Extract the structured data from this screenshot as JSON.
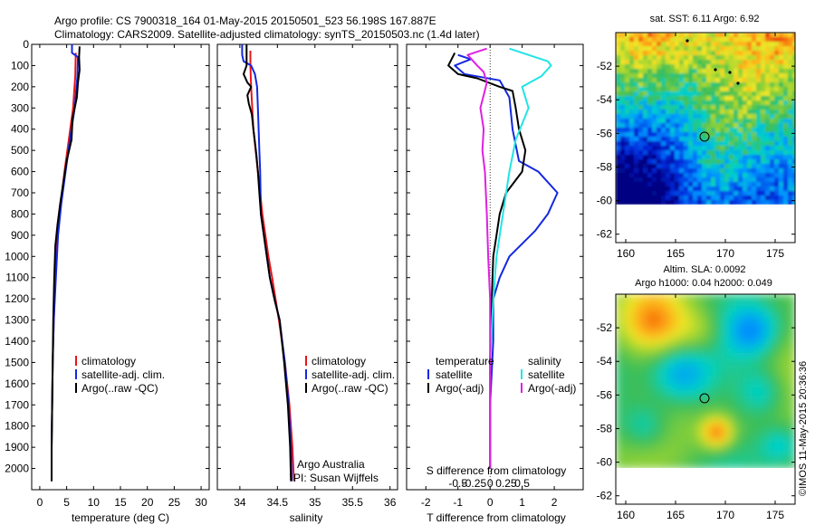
{
  "header": {
    "line1": "Argo profile: CS 7900318_164 01-May-2015 20150501_523 56.198S 167.887E",
    "line2": "Climatology: CARS2009. Satellite-adjusted climatology: synTS_20150503.nc (1.4d later)"
  },
  "colors": {
    "clim": "#e8141a",
    "sat": "#1428e0",
    "argo": "#000000",
    "sat_s": "#22e4e4",
    "argo_s": "#e020e0"
  },
  "chart_data": [
    {
      "id": "temperature",
      "type": "line",
      "xlabel": "temperature (deg C)",
      "ylabel": "",
      "xlim": [
        -1.5,
        31.5
      ],
      "ylim": [
        2100,
        0
      ],
      "x_ticks": [
        0,
        5,
        10,
        15,
        20,
        25,
        30
      ],
      "x_tick_labels": [
        "0",
        "5",
        "10",
        "15",
        "20",
        "25",
        "30"
      ],
      "y_ticks": [
        0,
        100,
        200,
        300,
        400,
        500,
        600,
        700,
        800,
        900,
        1000,
        1100,
        1200,
        1300,
        1400,
        1500,
        1600,
        1700,
        1800,
        1900,
        2000
      ],
      "y_tick_labels": [
        "0",
        "100",
        "200",
        "300",
        "400",
        "500",
        "600",
        "700",
        "800",
        "900",
        "1000",
        "1100",
        "1200",
        "1300",
        "1400",
        "1500",
        "1600",
        "1700",
        "1800",
        "1900",
        "2000"
      ],
      "legend": {
        "position": "center-right",
        "entries": [
          "climatology",
          "satellite-adj. clim.",
          "Argo(..raw -QC)"
        ]
      },
      "series": [
        {
          "name": "climatology",
          "color_key": "clim",
          "points": [
            [
              6.7,
              40
            ],
            [
              6.6,
              150
            ],
            [
              6.2,
              300
            ],
            [
              5.4,
              450
            ],
            [
              4.6,
              600
            ],
            [
              3.9,
              750
            ],
            [
              3.3,
              900
            ],
            [
              2.9,
              1100
            ],
            [
              2.6,
              1300
            ],
            [
              2.4,
              1500
            ],
            [
              2.3,
              1700
            ],
            [
              2.2,
              1900
            ],
            [
              2.2,
              2060
            ]
          ]
        },
        {
          "name": "satellite-adj. clim.",
          "color_key": "sat",
          "points": [
            [
              6.0,
              0
            ],
            [
              6.0,
              40
            ],
            [
              7.1,
              60
            ],
            [
              7.0,
              150
            ],
            [
              6.5,
              300
            ],
            [
              5.6,
              450
            ],
            [
              4.8,
              600
            ],
            [
              4.0,
              750
            ],
            [
              3.4,
              900
            ],
            [
              3.0,
              1100
            ],
            [
              2.6,
              1300
            ],
            [
              2.4,
              1500
            ],
            [
              2.3,
              1700
            ],
            [
              2.2,
              1900
            ],
            [
              2.2,
              2060
            ]
          ]
        },
        {
          "name": "Argo(..raw -QC)",
          "color_key": "argo",
          "points": [
            [
              7.4,
              10
            ],
            [
              7.3,
              60
            ],
            [
              7.4,
              120
            ],
            [
              7.1,
              180
            ],
            [
              6.9,
              250
            ],
            [
              6.1,
              350
            ],
            [
              5.9,
              450
            ],
            [
              5.0,
              550
            ],
            [
              4.4,
              650
            ],
            [
              3.8,
              750
            ],
            [
              3.3,
              850
            ],
            [
              2.9,
              950
            ],
            [
              2.7,
              1100
            ],
            [
              2.5,
              1300
            ],
            [
              2.4,
              1500
            ],
            [
              2.3,
              1700
            ],
            [
              2.2,
              1900
            ],
            [
              2.2,
              2060
            ]
          ]
        }
      ]
    },
    {
      "id": "salinity",
      "type": "line",
      "xlabel": "salinity",
      "xlim": [
        33.7,
        36.1
      ],
      "ylim": [
        2100,
        0
      ],
      "x_ticks": [
        34,
        34.5,
        35,
        35.5,
        36
      ],
      "x_tick_labels": [
        "34",
        "34.5",
        "35",
        "35.5",
        "36"
      ],
      "legend": {
        "position": "center-right",
        "entries": [
          "climatology",
          "satellite-adj. clim.",
          "Argo(..raw -QC)"
        ]
      },
      "annotation": {
        "line1": "Argo Australia",
        "line2": "PI: Susan Wijffels"
      },
      "series": [
        {
          "name": "climatology",
          "color_key": "clim",
          "points": [
            [
              34.14,
              30
            ],
            [
              34.14,
              100
            ],
            [
              34.15,
              200
            ],
            [
              34.18,
              400
            ],
            [
              34.24,
              600
            ],
            [
              34.3,
              800
            ],
            [
              34.34,
              900
            ],
            [
              34.38,
              1000
            ],
            [
              34.43,
              1100
            ],
            [
              34.52,
              1300
            ],
            [
              34.6,
              1500
            ],
            [
              34.66,
              1700
            ],
            [
              34.7,
              1900
            ],
            [
              34.72,
              2060
            ]
          ]
        },
        {
          "name": "satellite-adj. clim.",
          "color_key": "sat",
          "points": [
            [
              34.03,
              0
            ],
            [
              34.03,
              50
            ],
            [
              34.05,
              80
            ],
            [
              34.15,
              100
            ],
            [
              34.2,
              140
            ],
            [
              34.23,
              200
            ],
            [
              34.24,
              300
            ],
            [
              34.25,
              400
            ],
            [
              34.26,
              500
            ],
            [
              34.27,
              600
            ],
            [
              34.28,
              800
            ],
            [
              34.32,
              900
            ],
            [
              34.36,
              1000
            ],
            [
              34.4,
              1100
            ],
            [
              34.46,
              1200
            ],
            [
              34.53,
              1300
            ],
            [
              34.6,
              1500
            ],
            [
              34.65,
              1700
            ],
            [
              34.68,
              1900
            ],
            [
              34.69,
              2060
            ]
          ]
        },
        {
          "name": "Argo(..raw -QC)",
          "color_key": "argo",
          "points": [
            [
              34.09,
              0
            ],
            [
              34.09,
              100
            ],
            [
              34.05,
              140
            ],
            [
              34.1,
              180
            ],
            [
              34.15,
              200
            ],
            [
              34.1,
              240
            ],
            [
              34.12,
              280
            ],
            [
              34.16,
              330
            ],
            [
              34.18,
              400
            ],
            [
              34.2,
              460
            ],
            [
              34.22,
              520
            ],
            [
              34.24,
              600
            ],
            [
              34.26,
              700
            ],
            [
              34.28,
              800
            ],
            [
              34.32,
              900
            ],
            [
              34.36,
              1000
            ],
            [
              34.4,
              1100
            ],
            [
              34.46,
              1200
            ],
            [
              34.53,
              1300
            ],
            [
              34.59,
              1500
            ],
            [
              34.64,
              1700
            ],
            [
              34.67,
              1900
            ],
            [
              34.68,
              2060
            ]
          ]
        }
      ]
    },
    {
      "id": "difference",
      "type": "line",
      "xlabel": "T difference from climatology",
      "x_label_top": "S difference from climatology",
      "xlim": [
        -2.6,
        2.9
      ],
      "ylim": [
        2100,
        0
      ],
      "x_ticks": [
        -2,
        -1,
        0,
        1,
        2
      ],
      "x_tick_labels": [
        "-2",
        "-1",
        "0",
        "1",
        "2"
      ],
      "s_ticks": [
        -0.5,
        -0.25,
        0,
        0.25,
        0.5
      ],
      "s_tick_labels": [
        "-0.5",
        "-0.25",
        "0",
        "0.25",
        "0.5"
      ],
      "legend_titles": {
        "temperature": "temperature",
        "salinity": "salinity"
      },
      "legend_entries": {
        "t_sat": "satellite",
        "t_argo": "Argo(-adj)",
        "s_sat": "satellite",
        "s_argo": "Argo(-adj)"
      },
      "series": [
        {
          "name": "T satellite",
          "color_key": "sat",
          "points": [
            [
              -1.0,
              50
            ],
            [
              -0.6,
              70
            ],
            [
              -1.1,
              100
            ],
            [
              -0.8,
              140
            ],
            [
              0.3,
              170
            ],
            [
              0.6,
              250
            ],
            [
              0.7,
              400
            ],
            [
              0.9,
              550
            ],
            [
              1.5,
              600
            ],
            [
              2.1,
              700
            ],
            [
              1.8,
              800
            ],
            [
              1.4,
              880
            ],
            [
              0.6,
              1000
            ],
            [
              0.3,
              1100
            ],
            [
              0.1,
              1200
            ],
            [
              0.1,
              1400
            ],
            [
              0.0,
              1700
            ],
            [
              0.0,
              2000
            ]
          ]
        },
        {
          "name": "T Argo(-adj)",
          "color_key": "argo",
          "points": [
            [
              -1.1,
              40
            ],
            [
              -1.3,
              100
            ],
            [
              -1.0,
              140
            ],
            [
              -0.4,
              160
            ],
            [
              0.3,
              200
            ],
            [
              0.7,
              220
            ],
            [
              0.8,
              300
            ],
            [
              0.9,
              400
            ],
            [
              1.1,
              500
            ],
            [
              1.0,
              600
            ],
            [
              0.5,
              700
            ],
            [
              0.3,
              800
            ],
            [
              0.2,
              900
            ],
            [
              0.1,
              1000
            ],
            [
              0.05,
              1200
            ],
            [
              0.0,
              1500
            ],
            [
              0.0,
              1800
            ],
            [
              0.0,
              2000
            ]
          ]
        },
        {
          "name": "S satellite",
          "color_key": "sat_s",
          "points": [
            [
              0.3,
              20
            ],
            [
              0.7,
              60
            ],
            [
              0.9,
              80
            ],
            [
              0.95,
              100
            ],
            [
              0.8,
              150
            ],
            [
              0.5,
              200
            ],
            [
              0.6,
              300
            ],
            [
              0.4,
              450
            ],
            [
              0.3,
              600
            ],
            [
              0.2,
              800
            ],
            [
              0.1,
              1000
            ],
            [
              0.05,
              1200
            ],
            [
              0.0,
              1500
            ],
            [
              0.0,
              1800
            ],
            [
              0.0,
              2000
            ]
          ]
        },
        {
          "name": "S Argo(-adj)",
          "color_key": "argo_s",
          "points": [
            [
              -0.05,
              20
            ],
            [
              -0.35,
              50
            ],
            [
              -0.2,
              100
            ],
            [
              -0.1,
              130
            ],
            [
              -0.05,
              180
            ],
            [
              -0.1,
              240
            ],
            [
              -0.15,
              300
            ],
            [
              -0.1,
              400
            ],
            [
              -0.12,
              500
            ],
            [
              -0.08,
              600
            ],
            [
              -0.05,
              800
            ],
            [
              -0.03,
              1000
            ],
            [
              0.0,
              1200
            ],
            [
              0.0,
              1500
            ],
            [
              0.0,
              1800
            ],
            [
              0.0,
              2000
            ]
          ]
        }
      ]
    },
    {
      "id": "sst_map",
      "type": "heatmap",
      "title": "sat. SST: 6.11  Argo: 6.92",
      "xlim": [
        159,
        177
      ],
      "ylim": [
        -62.5,
        -50
      ],
      "x_ticks": [
        160,
        165,
        170,
        175
      ],
      "x_tick_labels": [
        "160",
        "165",
        "170",
        "175"
      ],
      "y_ticks": [
        -52,
        -54,
        -56,
        -58,
        -60,
        -62
      ],
      "y_tick_labels": [
        "-52",
        "-54",
        "-56",
        "-58",
        "-60",
        "-62"
      ],
      "marker": {
        "lon": 167.887,
        "lat": -56.198
      }
    },
    {
      "id": "sla_map",
      "type": "heatmap",
      "title_line1": "Altim. SLA: 0.0092",
      "title_line2": "Argo h1000: 0.04  h2000: 0.049",
      "xlim": [
        159,
        177
      ],
      "ylim": [
        -62.5,
        -50
      ],
      "x_ticks": [
        160,
        165,
        170,
        175
      ],
      "x_tick_labels": [
        "160",
        "165",
        "170",
        "175"
      ],
      "y_ticks": [
        -52,
        -54,
        -56,
        -58,
        -60,
        -62
      ],
      "y_tick_labels": [
        "-52",
        "-54",
        "-56",
        "-58",
        "-60",
        "-62"
      ],
      "marker": {
        "lon": 167.887,
        "lat": -56.198
      }
    }
  ],
  "credit": "©IMOS 11-May-2015 20:36:36"
}
